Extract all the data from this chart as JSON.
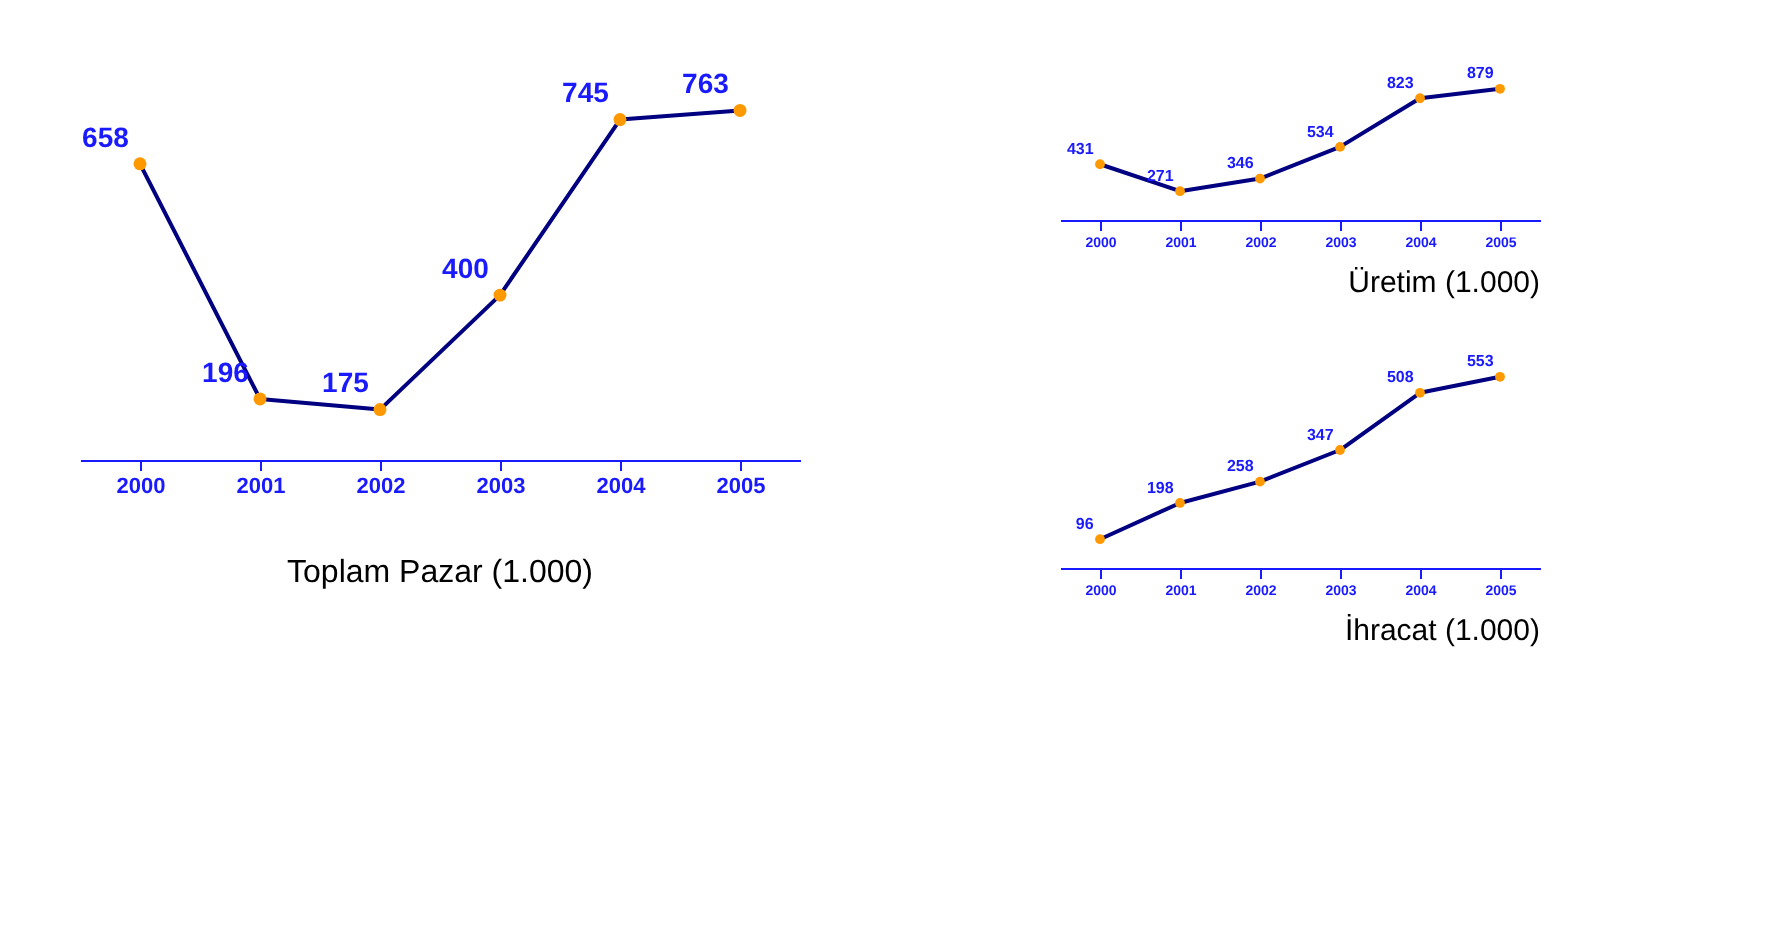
{
  "chart_data": [
    {
      "type": "line",
      "title": "Toplam Pazar (1.000)",
      "categories": [
        "2000",
        "2001",
        "2002",
        "2003",
        "2004",
        "2005"
      ],
      "series": [
        {
          "color": "#000080",
          "values": [
            658,
            196,
            175,
            400,
            745,
            763
          ]
        }
      ],
      "data_labels": true,
      "marker": "circle",
      "grid": false,
      "line_style": "solid",
      "tick_labels": "x"
    },
    {
      "type": "line",
      "title": "Üretim (1.000)",
      "categories": [
        "2000",
        "2001",
        "2002",
        "2003",
        "2004",
        "2005"
      ],
      "series": [
        {
          "color": "#000080",
          "values": [
            431,
            271,
            346,
            534,
            823,
            879
          ]
        }
      ],
      "data_labels": true,
      "marker": "circle",
      "grid": false,
      "line_style": "solid",
      "tick_labels": "x"
    },
    {
      "type": "line",
      "title": "İhracat (1.000)",
      "categories": [
        "2000",
        "2001",
        "2002",
        "2003",
        "2004",
        "2005"
      ],
      "series": [
        {
          "color": "#000080",
          "values": [
            96,
            198,
            258,
            347,
            508,
            553
          ]
        }
      ],
      "data_labels": true,
      "marker": "circle",
      "grid": false,
      "line_style": "solid",
      "tick_labels": "x"
    }
  ]
}
